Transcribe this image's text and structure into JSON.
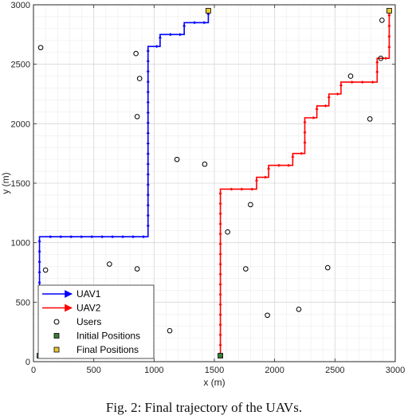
{
  "caption": "Fig. 2: Final trajectory of the UAVs.",
  "chart_data": {
    "type": "line",
    "xlabel": "x (m)",
    "ylabel": "y (m)",
    "xlim": [
      0,
      3000
    ],
    "ylim": [
      0,
      3000
    ],
    "xticks": [
      "0",
      "500",
      "1000",
      "1500",
      "2000",
      "2500",
      "3000"
    ],
    "yticks": [
      "0",
      "500",
      "1000",
      "1500",
      "2000",
      "2500",
      "3000"
    ],
    "grid": true,
    "legend_position": "bottom-left",
    "series": [
      {
        "name": "UAV1",
        "color": "#0000ff",
        "points": [
          [
            50,
            50
          ],
          [
            50,
            1050
          ],
          [
            950,
            1050
          ],
          [
            950,
            2650
          ],
          [
            1050,
            2650
          ],
          [
            1050,
            2750
          ],
          [
            1250,
            2750
          ],
          [
            1250,
            2850
          ],
          [
            1450,
            2850
          ],
          [
            1450,
            2950
          ]
        ]
      },
      {
        "name": "UAV2",
        "color": "#ff0000",
        "points": [
          [
            1550,
            50
          ],
          [
            1550,
            1450
          ],
          [
            1850,
            1450
          ],
          [
            1850,
            1550
          ],
          [
            1950,
            1550
          ],
          [
            1950,
            1650
          ],
          [
            2150,
            1650
          ],
          [
            2150,
            1750
          ],
          [
            2250,
            1750
          ],
          [
            2250,
            2050
          ],
          [
            2350,
            2050
          ],
          [
            2350,
            2150
          ],
          [
            2450,
            2150
          ],
          [
            2450,
            2250
          ],
          [
            2550,
            2250
          ],
          [
            2550,
            2350
          ],
          [
            2850,
            2350
          ],
          [
            2850,
            2550
          ],
          [
            2950,
            2550
          ],
          [
            2950,
            2950
          ]
        ]
      }
    ],
    "users": {
      "name": "Users",
      "points": [
        [
          60,
          2640
        ],
        [
          850,
          2590
        ],
        [
          880,
          2380
        ],
        [
          860,
          2060
        ],
        [
          1190,
          1700
        ],
        [
          1420,
          1660
        ],
        [
          1800,
          1320
        ],
        [
          1610,
          1090
        ],
        [
          630,
          820
        ],
        [
          860,
          780
        ],
        [
          100,
          770
        ],
        [
          1760,
          780
        ],
        [
          2440,
          790
        ],
        [
          1940,
          390
        ],
        [
          2200,
          440
        ],
        [
          1130,
          260
        ],
        [
          2630,
          2400
        ],
        [
          2790,
          2040
        ],
        [
          2890,
          2870
        ],
        [
          2880,
          2550
        ]
      ]
    },
    "initial_positions": {
      "name": "Initial Positions",
      "color": "#3a7d3a",
      "points": [
        [
          50,
          50
        ],
        [
          1550,
          50
        ]
      ]
    },
    "final_positions": {
      "name": "Final Positions",
      "color": "#e8c832",
      "points": [
        [
          1450,
          2950
        ],
        [
          2950,
          2950
        ]
      ]
    }
  }
}
